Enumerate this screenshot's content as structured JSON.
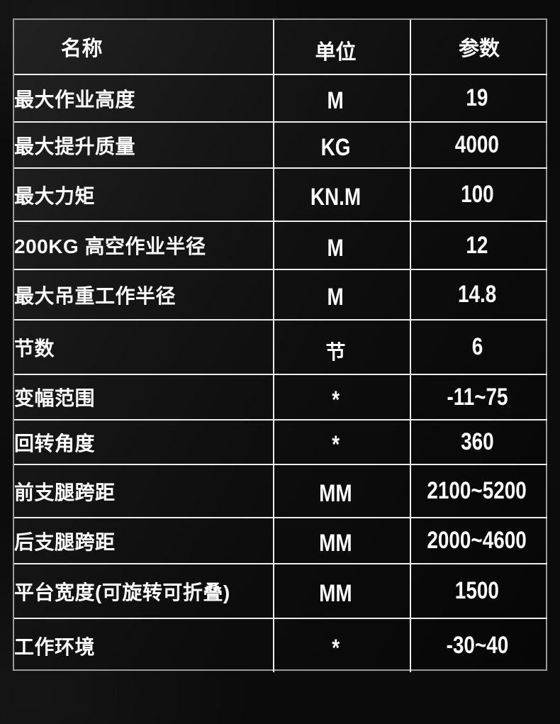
{
  "page": {
    "background_color": "#0b0b0b"
  },
  "spec_table": {
    "header": {
      "name": "名称",
      "unit": "单位",
      "param": "参数"
    },
    "rows": [
      {
        "name": "最大作业高度",
        "unit": "M",
        "param": "19"
      },
      {
        "name": "最大提升质量",
        "unit": "KG",
        "param": "4000"
      },
      {
        "name": "最大力矩",
        "unit": "KN.M",
        "param": "100"
      },
      {
        "name": "200KG 高空作业半径",
        "unit": "M",
        "param": "12"
      },
      {
        "name": "最大吊重工作半径",
        "unit": "M",
        "param": "14.8"
      },
      {
        "name": "节数",
        "unit": "节",
        "param": "6"
      },
      {
        "name": "变幅范围",
        "unit": "*",
        "param": "-11~75"
      },
      {
        "name": "回转角度",
        "unit": "*",
        "param": "360"
      },
      {
        "name": "前支腿跨距",
        "unit": "MM",
        "param": "2100~5200"
      },
      {
        "name": "后支腿跨距",
        "unit": "MM",
        "param": "2000~4600"
      },
      {
        "name": "平台宽度(可旋转可折叠)",
        "unit": "MM",
        "param": "1500"
      },
      {
        "name": "工作环境",
        "unit": "*",
        "param": "-30~40"
      }
    ],
    "colors": {
      "outer_border": "#9b9b9b",
      "inner_border": "#ededed",
      "text": "#ffffff"
    }
  }
}
